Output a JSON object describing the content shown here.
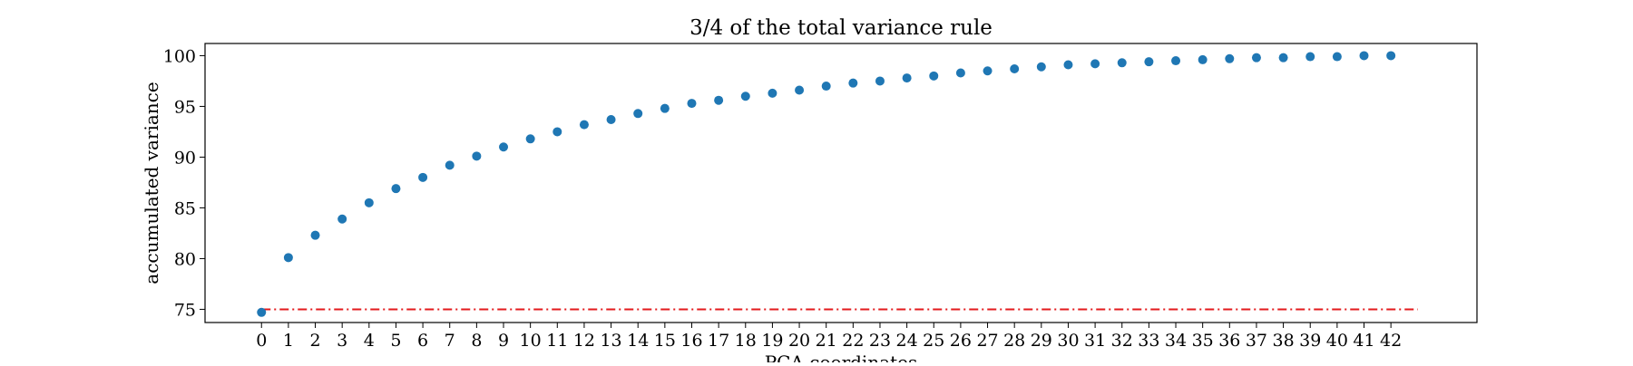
{
  "chart_data": {
    "type": "scatter",
    "title": "3/4 of the total variance rule",
    "xlabel": "PCA coordinates",
    "ylabel": "accumulated variance",
    "x": [
      0,
      1,
      2,
      3,
      4,
      5,
      6,
      7,
      8,
      9,
      10,
      11,
      12,
      13,
      14,
      15,
      16,
      17,
      18,
      19,
      20,
      21,
      22,
      23,
      24,
      25,
      26,
      27,
      28,
      29,
      30,
      31,
      32,
      33,
      34,
      35,
      36,
      37,
      38,
      39,
      40,
      41,
      42
    ],
    "xticks": [
      0,
      1,
      2,
      3,
      4,
      5,
      6,
      7,
      8,
      9,
      10,
      11,
      12,
      13,
      14,
      15,
      16,
      17,
      18,
      19,
      20,
      21,
      22,
      23,
      24,
      25,
      26,
      27,
      28,
      29,
      30,
      31,
      32,
      33,
      34,
      35,
      36,
      37,
      38,
      39,
      40,
      41,
      42
    ],
    "xlim": [
      -2.1,
      45.2
    ],
    "yticks": [
      75,
      80,
      85,
      90,
      95,
      100
    ],
    "ylim": [
      73.7,
      101.2
    ],
    "grid": false,
    "series": [
      {
        "values": [
          74.7,
          80.1,
          82.3,
          83.9,
          85.5,
          86.9,
          88.0,
          89.2,
          90.1,
          91.0,
          91.8,
          92.5,
          93.2,
          93.7,
          94.3,
          94.8,
          95.3,
          95.6,
          96.0,
          96.3,
          96.6,
          97.0,
          97.3,
          97.5,
          97.8,
          98.0,
          98.3,
          98.5,
          98.7,
          98.9,
          99.1,
          99.2,
          99.3,
          99.4,
          99.5,
          99.6,
          99.7,
          99.8,
          99.8,
          99.9,
          99.9,
          100.0,
          100.0
        ],
        "color": "#1f77b4"
      }
    ],
    "threshold_line": {
      "y": 75,
      "x_range": [
        0,
        43
      ],
      "color": "#e31a1c",
      "style": "dash-dot"
    }
  }
}
